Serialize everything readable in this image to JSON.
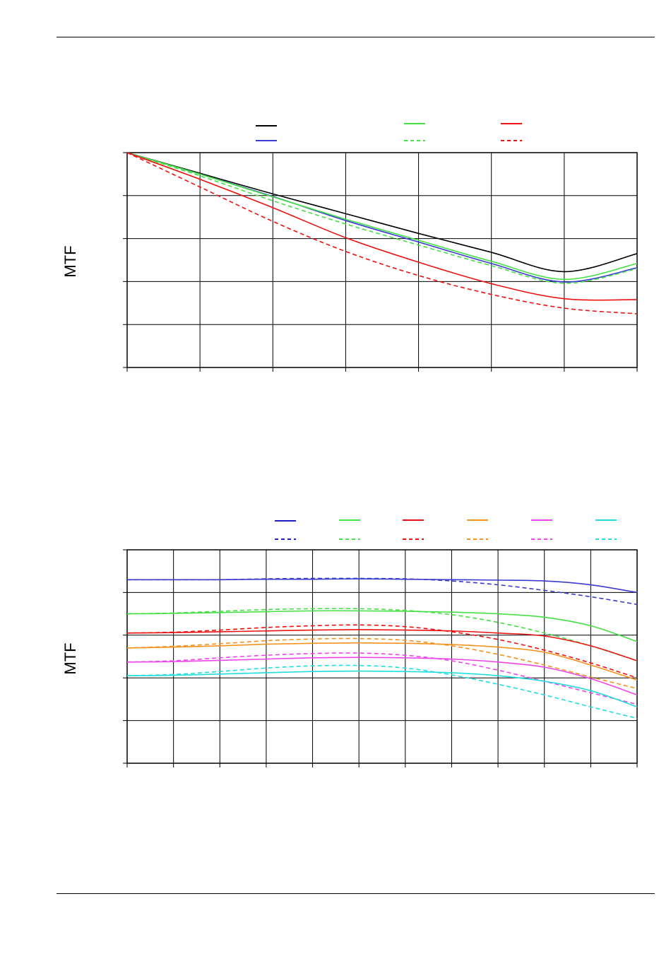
{
  "charts": [
    {
      "ylabel": "MTF",
      "legend_colors": [
        "#000000",
        "#3a3ad0",
        "#44e044",
        "#44e044",
        "#ee1111",
        "#ee1111"
      ],
      "grid_cols": 7,
      "grid_rows": 5
    },
    {
      "ylabel": "MTF",
      "legend_colors": [
        "#1c1cc0",
        "#44e044",
        "#ee1111",
        "#f5921e",
        "#ee44ee",
        "#22dddd"
      ],
      "grid_cols": 11,
      "grid_rows": 5
    }
  ],
  "chart_data": [
    {
      "type": "line",
      "xlabel": "",
      "ylabel": "MTF",
      "xlim": [
        0,
        7
      ],
      "ylim": [
        0,
        5
      ],
      "grid": true,
      "legend": "top",
      "series": [
        {
          "color": "#000000",
          "dash": false,
          "x": [
            0,
            1,
            2,
            3,
            4,
            5,
            6,
            7
          ],
          "y": [
            5.0,
            4.52,
            4.04,
            3.58,
            3.12,
            2.68,
            2.23,
            2.65
          ]
        },
        {
          "color": "#3a3ad0",
          "dash": false,
          "x": [
            0,
            1,
            2,
            3,
            4,
            5,
            6,
            7
          ],
          "y": [
            5.0,
            4.5,
            3.98,
            3.42,
            2.92,
            2.42,
            1.99,
            2.32
          ]
        },
        {
          "color": "#44e044",
          "dash": false,
          "x": [
            0,
            1,
            2,
            3,
            4,
            5,
            6,
            7
          ],
          "y": [
            5.0,
            4.5,
            3.97,
            3.45,
            2.96,
            2.47,
            2.05,
            2.42
          ]
        },
        {
          "color": "#44e044",
          "dash": true,
          "x": [
            0,
            1,
            2,
            3,
            4,
            5,
            6,
            7
          ],
          "y": [
            5.0,
            4.46,
            3.88,
            3.34,
            2.85,
            2.37,
            1.96,
            2.3
          ]
        },
        {
          "color": "#ee1111",
          "dash": false,
          "x": [
            0,
            1,
            2,
            3,
            4,
            5,
            6,
            7
          ],
          "y": [
            5.0,
            4.38,
            3.72,
            3.02,
            2.45,
            1.95,
            1.6,
            1.58
          ]
        },
        {
          "color": "#ee1111",
          "dash": true,
          "x": [
            0,
            1,
            2,
            3,
            4,
            5,
            6,
            7
          ],
          "y": [
            5.0,
            4.2,
            3.4,
            2.7,
            2.14,
            1.7,
            1.38,
            1.25
          ]
        }
      ]
    },
    {
      "type": "line",
      "xlabel": "",
      "ylabel": "MTF",
      "xlim": [
        0,
        11
      ],
      "ylim": [
        0,
        5
      ],
      "grid": true,
      "legend": "top",
      "series": [
        {
          "color": "#3a3ad0",
          "dash": false,
          "x": [
            0,
            1,
            2,
            3,
            4,
            5,
            6,
            7,
            8,
            9,
            10,
            11
          ],
          "y": [
            4.3,
            4.3,
            4.3,
            4.31,
            4.31,
            4.32,
            4.31,
            4.3,
            4.29,
            4.27,
            4.18,
            4.0
          ]
        },
        {
          "color": "#3a3ad0",
          "dash": true,
          "x": [
            0,
            1,
            2,
            3,
            4,
            5,
            6,
            7,
            8,
            9,
            10,
            11
          ],
          "y": [
            4.3,
            4.3,
            4.3,
            4.32,
            4.33,
            4.33,
            4.32,
            4.27,
            4.18,
            4.05,
            3.9,
            3.72
          ]
        },
        {
          "color": "#44e044",
          "dash": false,
          "x": [
            0,
            1,
            2,
            3,
            4,
            5,
            6,
            7,
            8,
            9,
            10,
            11
          ],
          "y": [
            3.5,
            3.51,
            3.53,
            3.55,
            3.57,
            3.57,
            3.56,
            3.54,
            3.5,
            3.42,
            3.22,
            2.85
          ]
        },
        {
          "color": "#44e044",
          "dash": true,
          "x": [
            0,
            1,
            2,
            3,
            4,
            5,
            6,
            7,
            8,
            9,
            10,
            11
          ],
          "y": [
            3.5,
            3.52,
            3.56,
            3.6,
            3.62,
            3.62,
            3.58,
            3.48,
            3.3,
            3.05,
            2.75,
            2.4
          ]
        },
        {
          "color": "#ee1111",
          "dash": false,
          "x": [
            0,
            1,
            2,
            3,
            4,
            5,
            6,
            7,
            8,
            9,
            10,
            11
          ],
          "y": [
            3.05,
            3.06,
            3.08,
            3.1,
            3.12,
            3.13,
            3.12,
            3.1,
            3.05,
            2.98,
            2.75,
            2.4
          ]
        },
        {
          "color": "#ee1111",
          "dash": true,
          "x": [
            0,
            1,
            2,
            3,
            4,
            5,
            6,
            7,
            8,
            9,
            10,
            11
          ],
          "y": [
            3.05,
            3.07,
            3.12,
            3.18,
            3.22,
            3.24,
            3.2,
            3.08,
            2.9,
            2.65,
            2.35,
            2.0
          ]
        },
        {
          "color": "#f5921e",
          "dash": false,
          "x": [
            0,
            1,
            2,
            3,
            4,
            5,
            6,
            7,
            8,
            9,
            10,
            11
          ],
          "y": [
            2.7,
            2.72,
            2.75,
            2.79,
            2.81,
            2.82,
            2.81,
            2.78,
            2.72,
            2.6,
            2.3,
            1.95
          ]
        },
        {
          "color": "#f5921e",
          "dash": true,
          "x": [
            0,
            1,
            2,
            3,
            4,
            5,
            6,
            7,
            8,
            9,
            10,
            11
          ],
          "y": [
            2.7,
            2.74,
            2.8,
            2.87,
            2.91,
            2.92,
            2.88,
            2.75,
            2.55,
            2.3,
            2.02,
            1.75
          ]
        },
        {
          "color": "#ee44ee",
          "dash": false,
          "x": [
            0,
            1,
            2,
            3,
            4,
            5,
            6,
            7,
            8,
            9,
            10,
            11
          ],
          "y": [
            2.37,
            2.38,
            2.41,
            2.44,
            2.47,
            2.48,
            2.47,
            2.44,
            2.37,
            2.25,
            1.98,
            1.6
          ]
        },
        {
          "color": "#ee44ee",
          "dash": true,
          "x": [
            0,
            1,
            2,
            3,
            4,
            5,
            6,
            7,
            8,
            9,
            10,
            11
          ],
          "y": [
            2.37,
            2.4,
            2.47,
            2.53,
            2.57,
            2.58,
            2.53,
            2.4,
            2.18,
            1.92,
            1.65,
            1.38
          ]
        },
        {
          "color": "#22dddd",
          "dash": false,
          "x": [
            0,
            1,
            2,
            3,
            4,
            5,
            6,
            7,
            8,
            9,
            10,
            11
          ],
          "y": [
            2.05,
            2.06,
            2.09,
            2.12,
            2.15,
            2.16,
            2.15,
            2.12,
            2.05,
            1.92,
            1.7,
            1.32
          ]
        },
        {
          "color": "#22dddd",
          "dash": true,
          "x": [
            0,
            1,
            2,
            3,
            4,
            5,
            6,
            7,
            8,
            9,
            10,
            11
          ],
          "y": [
            2.05,
            2.08,
            2.15,
            2.23,
            2.28,
            2.29,
            2.23,
            2.07,
            1.85,
            1.6,
            1.32,
            1.05
          ]
        }
      ]
    }
  ]
}
